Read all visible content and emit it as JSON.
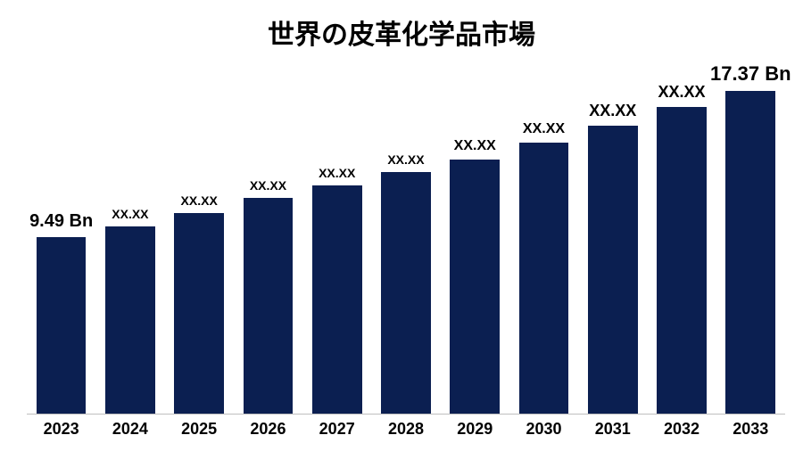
{
  "chart": {
    "type": "bar",
    "title": "世界の皮革化学品市場",
    "title_fontsize": 30,
    "title_fontweight": 700,
    "title_color": "#000000",
    "background_color": "#ffffff",
    "bar_color": "#0b1f51",
    "axis_line_color": "#bfbfbf",
    "bar_width_pct": 72,
    "ylim": [
      0,
      18
    ],
    "value_label_fontweight": 700,
    "value_label_color": "#000000",
    "xaxis_label_fontsize": 18,
    "xaxis_label_fontweight": 700,
    "xaxis_label_color": "#000000",
    "categories": [
      "2023",
      "2024",
      "2025",
      "2026",
      "2027",
      "2028",
      "2029",
      "2030",
      "2031",
      "2032",
      "2033"
    ],
    "values": [
      9.49,
      10.1,
      10.8,
      11.6,
      12.3,
      13.0,
      13.7,
      14.6,
      15.5,
      16.5,
      17.37
    ],
    "value_labels": [
      "9.49 Bn",
      "XX.XX",
      "XX.XX",
      "XX.XX",
      "XX.XX",
      "XX.XX",
      "XX.XX",
      "XX.XX",
      "XX.XX",
      "XX.XX",
      "17.37 Bn"
    ],
    "value_label_fontsize": [
      20,
      14,
      14,
      14,
      14,
      14,
      16,
      16,
      18,
      18,
      22
    ]
  }
}
